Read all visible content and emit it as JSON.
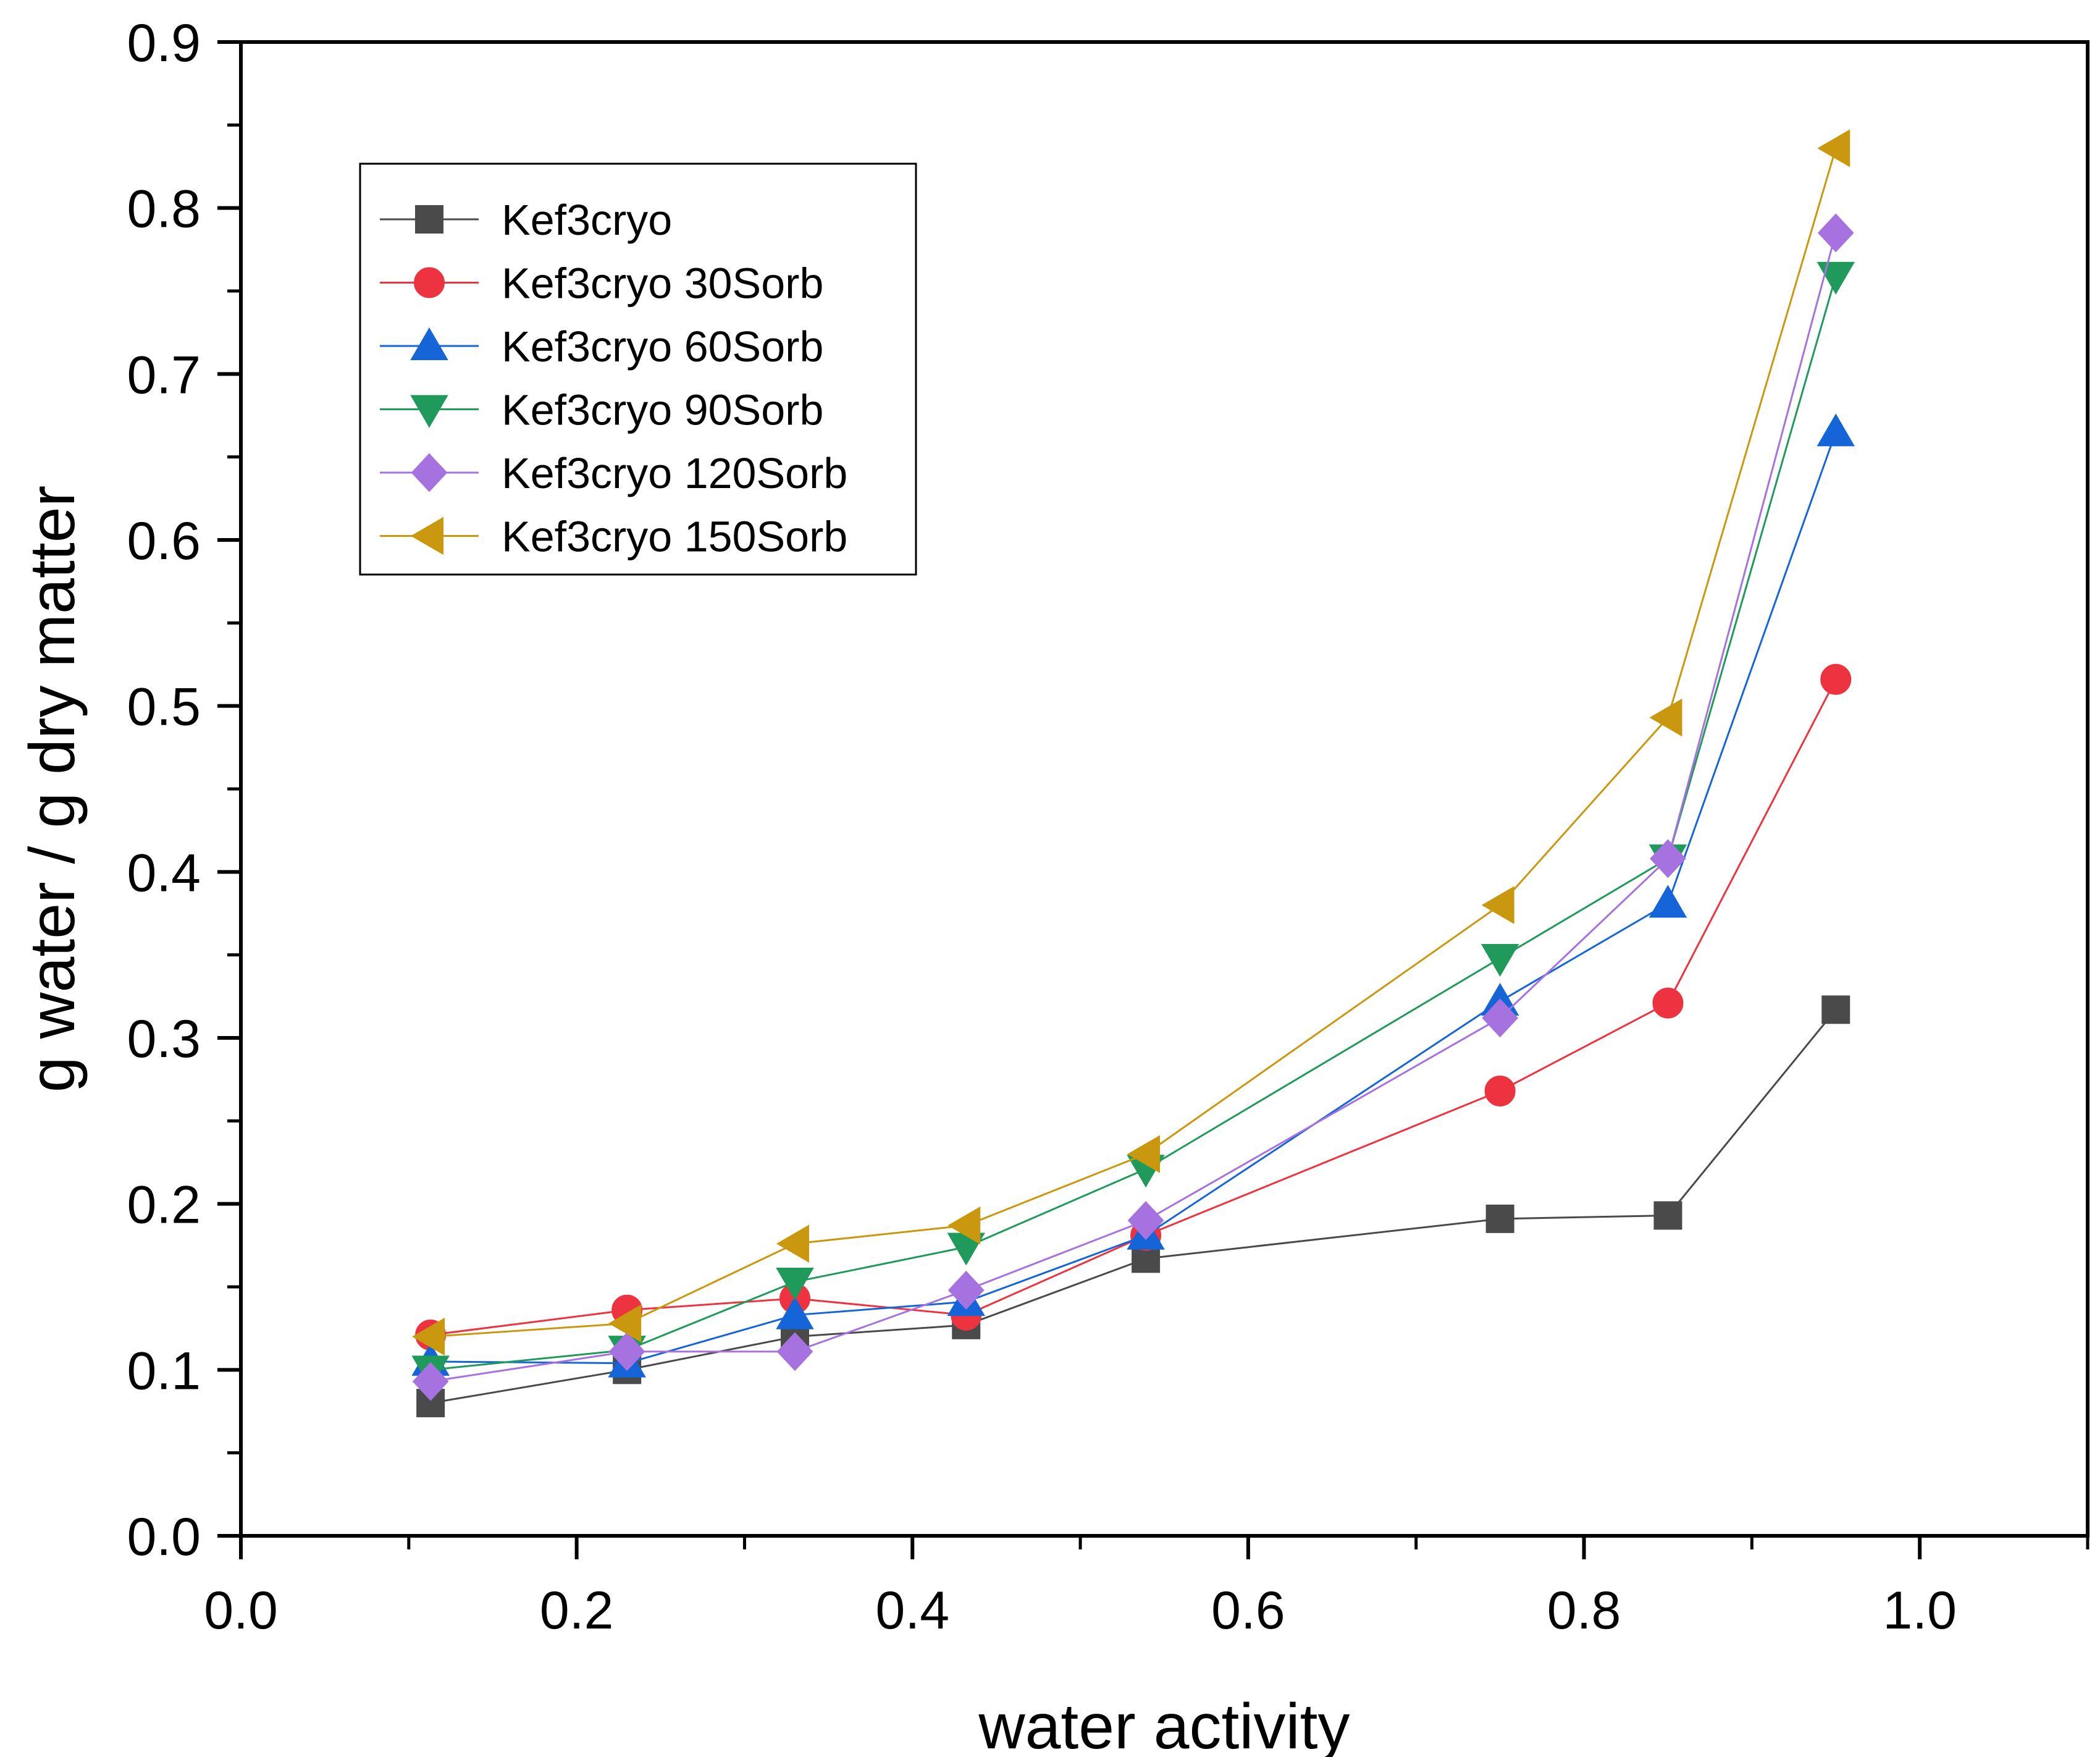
{
  "chart_data": {
    "type": "line",
    "title": "",
    "xlabel": "water activity",
    "ylabel": "g water / g dry matter",
    "xlim": [
      0.0,
      1.1
    ],
    "ylim": [
      0.0,
      0.9
    ],
    "x_ticks": [
      0.0,
      0.2,
      0.4,
      0.6,
      0.8,
      1.0
    ],
    "x_tick_labels": [
      "0.0",
      "0.2",
      "0.4",
      "0.6",
      "0.8",
      "1.0"
    ],
    "y_ticks": [
      0.0,
      0.1,
      0.2,
      0.3,
      0.4,
      0.5,
      0.6,
      0.7,
      0.8,
      0.9
    ],
    "y_tick_labels": [
      "0.0",
      "0.1",
      "0.2",
      "0.3",
      "0.4",
      "0.5",
      "0.6",
      "0.7",
      "0.8",
      "0.9"
    ],
    "grid": false,
    "legend_position": "top-left",
    "x": [
      0.113,
      0.23,
      0.33,
      0.432,
      0.539,
      0.75,
      0.85,
      0.95
    ],
    "series": [
      {
        "name": "Kef3cryo",
        "marker": "square",
        "color": "#4a4a4a",
        "values": [
          0.08,
          0.1,
          0.12,
          0.127,
          0.167,
          0.191,
          0.193,
          0.317
        ]
      },
      {
        "name": "Kef3cryo 30Sorb",
        "marker": "circle",
        "color": "#ee3340",
        "values": [
          0.121,
          0.136,
          0.143,
          0.133,
          0.181,
          0.268,
          0.321,
          0.516
        ]
      },
      {
        "name": "Kef3cryo 60Sorb",
        "marker": "triangle-up",
        "color": "#1565d8",
        "values": [
          0.105,
          0.104,
          0.133,
          0.141,
          0.181,
          0.322,
          0.381,
          0.665
        ]
      },
      {
        "name": "Kef3cryo 90Sorb",
        "marker": "triangle-down",
        "color": "#1f9a5a",
        "values": [
          0.1,
          0.112,
          0.153,
          0.174,
          0.221,
          0.348,
          0.408,
          0.759
        ]
      },
      {
        "name": "Kef3cryo 120Sorb",
        "marker": "diamond",
        "color": "#a572e0",
        "values": [
          0.093,
          0.111,
          0.111,
          0.148,
          0.19,
          0.312,
          0.408,
          0.785
        ]
      },
      {
        "name": "Kef3cryo 150Sorb",
        "marker": "triangle-left",
        "color": "#c9980e",
        "values": [
          0.12,
          0.128,
          0.176,
          0.187,
          0.23,
          0.38,
          0.493,
          0.836
        ]
      }
    ]
  }
}
